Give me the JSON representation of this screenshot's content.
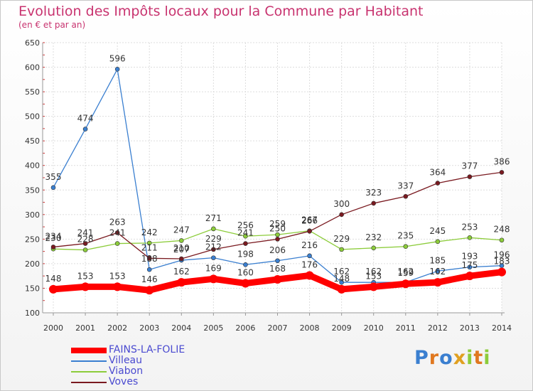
{
  "chart_data": {
    "type": "line",
    "title": "Evolution des Impôts locaux pour la Commune par Habitant",
    "subtitle": "(en € et par an)",
    "x": [
      "2000",
      "2001",
      "2002",
      "2003",
      "2004",
      "2005",
      "2006",
      "2007",
      "2008",
      "2009",
      "2010",
      "2011",
      "2012",
      "2013",
      "2014"
    ],
    "yticks": [
      "100",
      "150",
      "200",
      "250",
      "300",
      "350",
      "400",
      "450",
      "500",
      "550",
      "600",
      "650"
    ],
    "ylim": [
      100,
      650
    ],
    "grid": true,
    "series": [
      {
        "name": "FAINS-LA-FOLIE",
        "color": "#ff0000",
        "values": [
          148,
          153,
          153,
          146,
          162,
          169,
          160,
          168,
          176,
          148,
          153,
          159,
          162,
          175,
          183
        ],
        "labels": [
          "148",
          "153",
          "153",
          "146",
          "162",
          "169",
          "160",
          "168",
          "176",
          "148",
          "153",
          "159",
          "162",
          "175",
          "183"
        ]
      },
      {
        "name": "Villeau",
        "color": "#3a7fd0",
        "values": [
          355,
          474,
          596,
          188,
          207,
          212,
          198,
          206,
          216,
          162,
          162,
          162,
          185,
          193,
          196
        ],
        "labels": [
          "355",
          "474",
          "596",
          "188",
          "207",
          "212",
          "198",
          "206",
          "216",
          "162",
          "162",
          "162",
          "185",
          "193",
          "196"
        ]
      },
      {
        "name": "Viabon",
        "color": "#8ccc3a",
        "values": [
          230,
          228,
          241,
          242,
          247,
          271,
          256,
          259,
          267,
          229,
          232,
          235,
          245,
          253,
          248
        ],
        "labels": [
          "230",
          "228",
          "241",
          "242",
          "247",
          "271",
          "256",
          "259",
          "267",
          "229",
          "232",
          "235",
          "245",
          "253",
          "248"
        ]
      },
      {
        "name": "Voves",
        "color": "#7a1a20",
        "values": [
          234,
          241,
          263,
          211,
          210,
          229,
          241,
          250,
          266,
          300,
          323,
          337,
          364,
          377,
          386
        ],
        "labels": [
          "234",
          "241",
          "263",
          "211",
          "210",
          "229",
          "241",
          "250",
          "266",
          "300",
          "323",
          "337",
          "364",
          "377",
          "386"
        ]
      }
    ]
  },
  "legend": {
    "items": [
      {
        "label": "FAINS-LA-FOLIE",
        "color": "#ff0000"
      },
      {
        "label": "Villeau",
        "color": "#3a7fd0"
      },
      {
        "label": "Viabon",
        "color": "#8ccc3a"
      },
      {
        "label": "Voves",
        "color": "#7a1a20"
      }
    ]
  },
  "logo": {
    "text": "Proxiti"
  }
}
